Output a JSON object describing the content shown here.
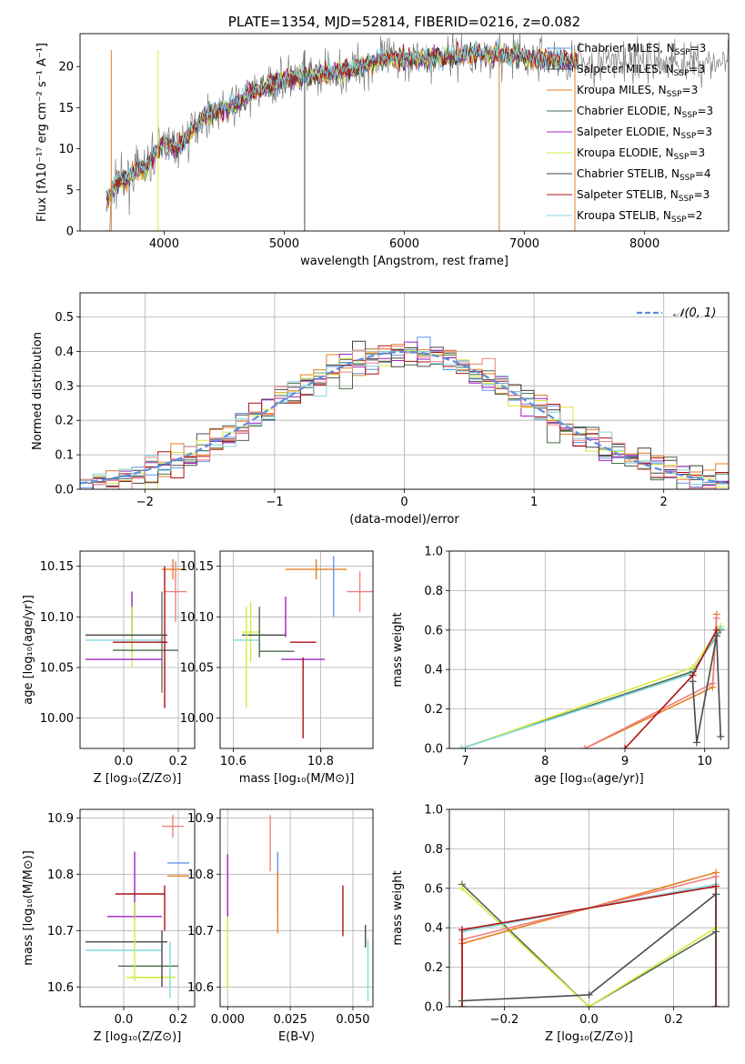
{
  "chart_data": [
    {
      "id": "spectrum",
      "type": "line",
      "title": "PLATE=1354, MJD=52814, FIBERID=0216, z=0.082",
      "xlabel": "wavelength [Angstrom, rest frame]",
      "ylabel": "Flux [fλ10⁻¹⁷ erg cm⁻² s⁻¹ A⁻¹]",
      "xlim": [
        3300,
        8700
      ],
      "ylim": [
        0,
        24
      ],
      "xticks": [
        4000,
        5000,
        6000,
        7000,
        8000
      ],
      "yticks": [
        0,
        5,
        10,
        15,
        20
      ],
      "grid": false,
      "legend_position": "right",
      "shape": {
        "x": [
          3550,
          3600,
          3700,
          3800,
          3850,
          3900,
          3950,
          4000,
          4100,
          4200,
          4300,
          4400,
          4500,
          4600,
          4700,
          4800,
          4900,
          5000,
          5200,
          5400,
          5600,
          5800,
          6000,
          6200,
          6400,
          6600,
          6800,
          7000,
          7200,
          7400
        ],
        "y": [
          4,
          6,
          6.5,
          7.5,
          7.5,
          9,
          10,
          11,
          10,
          11.5,
          13.5,
          14.5,
          14.8,
          15.5,
          16.5,
          17.2,
          17.8,
          18.5,
          18.8,
          19.2,
          19.8,
          20.8,
          21,
          21,
          21.3,
          21.5,
          21.5,
          21.2,
          21,
          20.5
        ]
      },
      "series": [
        {
          "name": "Chabrier MILES, N",
          "sub": "SSP",
          "suffix": "=3",
          "color": "#6494e8"
        },
        {
          "name": "Salpeter MILES, N",
          "sub": "SSP",
          "suffix": "=3",
          "color": "#4a4a4a"
        },
        {
          "name": "Kroupa MILES, N",
          "sub": "SSP",
          "suffix": "=3",
          "color": "#e67e22"
        },
        {
          "name": "Chabrier ELODIE, N",
          "sub": "SSP",
          "suffix": "=3",
          "color": "#4b6b4b"
        },
        {
          "name": "Salpeter ELODIE, N",
          "sub": "SSP",
          "suffix": "=3",
          "color": "#a020c0"
        },
        {
          "name": "Kroupa ELODIE, N",
          "sub": "SSP",
          "suffix": "=3",
          "color": "#d8e840"
        },
        {
          "name": "Chabrier STELIB, N",
          "sub": "SSP",
          "suffix": "=4",
          "color": "#404040"
        },
        {
          "name": "Salpeter STELIB, N",
          "sub": "SSP",
          "suffix": "=3",
          "color": "#b01010"
        },
        {
          "name": "Kroupa STELIB, N",
          "sub": "SSP",
          "suffix": "=2",
          "color": "#80d8e0"
        }
      ],
      "data_color": "#808080"
    },
    {
      "id": "residuals",
      "type": "line",
      "xlabel": "(data-model)/error",
      "ylabel": "Normed distribution",
      "xlim": [
        -2.5,
        2.5
      ],
      "ylim": [
        0,
        0.57
      ],
      "xticks": [
        -2,
        -1,
        0,
        1,
        2
      ],
      "yticks": [
        0.0,
        0.1,
        0.2,
        0.3,
        0.4,
        0.5
      ],
      "grid": true,
      "legend": {
        "label": "𝒩(0, 1)",
        "position": "top-right"
      },
      "bins": {
        "start": -2.5,
        "width": 0.1,
        "count": 50
      },
      "hist_colors": [
        "#6494e8",
        "#4a4a4a",
        "#e67e22",
        "#4b6b4b",
        "#a020c0",
        "#d8e840",
        "#404040",
        "#b01010",
        "#80d8e0",
        "#f08080"
      ],
      "gaussian_color": "#5b8ee0"
    },
    {
      "id": "age_vs_Z",
      "type": "scatter",
      "xlabel": "Z [log₁₀(Z/Z⊙)]",
      "ylabel": "age  [log₁₀(age/yr)]",
      "xlim": [
        -0.16,
        0.26
      ],
      "ylim": [
        9.97,
        10.165
      ],
      "xticks": [
        0.0,
        0.2
      ],
      "yticks": [
        10.0,
        10.05,
        10.1,
        10.15
      ],
      "grid": true,
      "points": [
        {
          "x": 0.18,
          "y": 10.147,
          "xerr": 0.04,
          "yerr": 0.01,
          "color": "#e67e22"
        },
        {
          "x": 0.19,
          "y": 10.125,
          "xerr": 0.04,
          "yerr": 0.03,
          "color": "#f08080"
        },
        {
          "x": 0.03,
          "y": 10.095,
          "xerr": 0.0,
          "yerr": 0.03,
          "color": "#a020c0"
        },
        {
          "x": 0.03,
          "y": 10.08,
          "xerr": 0.0,
          "yerr": 0.03,
          "color": "#d8e840"
        },
        {
          "x": 0.01,
          "y": 10.082,
          "xerr": 0.15,
          "yerr": 0.0,
          "color": "#4a4a4a"
        },
        {
          "x": 0.0,
          "y": 10.077,
          "xerr": 0.14,
          "yerr": 0.0,
          "color": "#80d8e0"
        },
        {
          "x": 0.14,
          "y": 10.075,
          "xerr": 0.02,
          "yerr": 0.05,
          "color": "#6b6b6b"
        },
        {
          "x": 0.06,
          "y": 10.075,
          "xerr": 0.1,
          "yerr": 0.0,
          "color": "#b01010"
        },
        {
          "x": 0.08,
          "y": 10.067,
          "xerr": 0.12,
          "yerr": 0.0,
          "color": "#4b6b4b"
        },
        {
          "x": 0.0,
          "y": 10.058,
          "xerr": 0.14,
          "yerr": 0.0,
          "color": "#a020c0"
        },
        {
          "x": 0.15,
          "y": 10.08,
          "xerr": 0.0,
          "yerr": 0.07,
          "color": "#b01010"
        }
      ]
    },
    {
      "id": "age_vs_mass",
      "type": "scatter",
      "xlabel": "mass [log₁₀(M/M⊙)]",
      "xlim": [
        10.57,
        10.92
      ],
      "ylim": [
        9.97,
        10.165
      ],
      "xticks": [
        10.6,
        10.8
      ],
      "yticks": [
        10.0,
        10.05,
        10.1,
        10.15
      ],
      "grid": true,
      "points": [
        {
          "x": 10.79,
          "y": 10.147,
          "xerr": 0.07,
          "yerr": 0.01,
          "color": "#e67e22"
        },
        {
          "x": 10.83,
          "y": 10.13,
          "xerr": 0.0,
          "yerr": 0.03,
          "color": "#6494e8"
        },
        {
          "x": 10.89,
          "y": 10.125,
          "xerr": 0.03,
          "yerr": 0.02,
          "color": "#f08080"
        },
        {
          "x": 10.72,
          "y": 10.1,
          "xerr": 0.0,
          "yerr": 0.02,
          "color": "#a020c0"
        },
        {
          "x": 10.64,
          "y": 10.085,
          "xerr": 0.02,
          "yerr": 0.03,
          "color": "#d8e840"
        },
        {
          "x": 10.67,
          "y": 10.082,
          "xerr": 0.05,
          "yerr": 0.0,
          "color": "#4a4a4a"
        },
        {
          "x": 10.63,
          "y": 10.077,
          "xerr": 0.03,
          "yerr": 0.0,
          "color": "#80d8e0"
        },
        {
          "x": 10.66,
          "y": 10.085,
          "xerr": 0.0,
          "yerr": 0.025,
          "color": "#4b6b4b"
        },
        {
          "x": 10.76,
          "y": 10.075,
          "xerr": 0.03,
          "yerr": 0.0,
          "color": "#b01010"
        },
        {
          "x": 10.7,
          "y": 10.066,
          "xerr": 0.04,
          "yerr": 0.0,
          "color": "#4b6b4b"
        },
        {
          "x": 10.76,
          "y": 10.058,
          "xerr": 0.05,
          "yerr": 0.0,
          "color": "#a020c0"
        },
        {
          "x": 10.63,
          "y": 10.06,
          "xerr": 0.0,
          "yerr": 0.05,
          "color": "#d8e840"
        },
        {
          "x": 10.76,
          "y": 10.02,
          "xerr": 0.0,
          "yerr": 0.04,
          "color": "#b01010"
        }
      ]
    },
    {
      "id": "weight_vs_age",
      "type": "line",
      "xlabel": "age  [log₁₀(age/yr)]",
      "ylabel": "mass weight",
      "xlim": [
        6.8,
        10.3
      ],
      "ylim": [
        0,
        1.0
      ],
      "xticks": [
        7,
        8,
        9,
        10
      ],
      "yticks": [
        0.0,
        0.2,
        0.4,
        0.6,
        0.8,
        1.0
      ],
      "grid": true,
      "series": [
        {
          "x": [
            6.95,
            9.85,
            10.2
          ],
          "y": [
            0.0,
            0.39,
            0.6
          ],
          "color": "#4b6b4b"
        },
        {
          "x": [
            6.95,
            9.85,
            10.2
          ],
          "y": [
            0.0,
            0.41,
            0.62
          ],
          "color": "#d8e840"
        },
        {
          "x": [
            6.95,
            9.85,
            10.2
          ],
          "y": [
            0.0,
            0.38,
            0.61
          ],
          "color": "#80d8e0"
        },
        {
          "x": [
            8.5,
            10.1,
            10.15
          ],
          "y": [
            0.0,
            0.31,
            0.68
          ],
          "color": "#e67e22"
        },
        {
          "x": [
            8.5,
            10.1,
            10.15
          ],
          "y": [
            0.0,
            0.33,
            0.66
          ],
          "color": "#f08080"
        },
        {
          "x": [
            9.0,
            9.85,
            10.15
          ],
          "y": [
            0.0,
            0.37,
            0.6
          ],
          "color": "#b01010"
        },
        {
          "x": [
            9.85,
            9.9,
            10.15,
            10.2
          ],
          "y": [
            0.34,
            0.03,
            0.57,
            0.06
          ],
          "color": "#4a4a4a"
        }
      ]
    },
    {
      "id": "mass_vs_Z",
      "type": "scatter",
      "xlabel": "Z [log₁₀(Z/Z⊙)]",
      "ylabel": "mass [log₁₀(M/M⊙)]",
      "xlim": [
        -0.16,
        0.26
      ],
      "ylim": [
        10.565,
        10.915
      ],
      "xticks": [
        0.0,
        0.2
      ],
      "yticks": [
        10.6,
        10.7,
        10.8,
        10.9
      ],
      "grid": true,
      "points": [
        {
          "x": 0.18,
          "y": 10.885,
          "xerr": 0.04,
          "yerr": 0.02,
          "color": "#f08080"
        },
        {
          "x": 0.2,
          "y": 10.82,
          "xerr": 0.04,
          "yerr": 0.0,
          "color": "#6494e8"
        },
        {
          "x": 0.2,
          "y": 10.797,
          "xerr": 0.04,
          "yerr": 0.0,
          "color": "#e67e22"
        },
        {
          "x": 0.04,
          "y": 10.78,
          "xerr": 0.0,
          "yerr": 0.06,
          "color": "#a020c0"
        },
        {
          "x": 0.06,
          "y": 10.765,
          "xerr": 0.09,
          "yerr": 0.0,
          "color": "#b01010"
        },
        {
          "x": 0.04,
          "y": 10.725,
          "xerr": 0.1,
          "yerr": 0.0,
          "color": "#a020c0"
        },
        {
          "x": 0.01,
          "y": 10.68,
          "xerr": 0.15,
          "yerr": 0.0,
          "color": "#4a4a4a"
        },
        {
          "x": 0.0,
          "y": 10.665,
          "xerr": 0.14,
          "yerr": 0.0,
          "color": "#80d8e0"
        },
        {
          "x": 0.09,
          "y": 10.637,
          "xerr": 0.11,
          "yerr": 0.0,
          "color": "#4b6b4b"
        },
        {
          "x": 0.1,
          "y": 10.617,
          "xerr": 0.09,
          "yerr": 0.0,
          "color": "#d8e840"
        },
        {
          "x": 0.04,
          "y": 10.68,
          "xerr": 0.0,
          "yerr": 0.07,
          "color": "#d8e840"
        },
        {
          "x": 0.15,
          "y": 10.74,
          "xerr": 0.0,
          "yerr": 0.04,
          "color": "#b01010"
        },
        {
          "x": 0.14,
          "y": 10.65,
          "xerr": 0.0,
          "yerr": 0.05,
          "color": "#4a4a4a"
        },
        {
          "x": 0.17,
          "y": 10.63,
          "xerr": 0.0,
          "yerr": 0.05,
          "color": "#80d8e0"
        }
      ]
    },
    {
      "id": "mass_vs_ebv",
      "type": "scatter",
      "xlabel": "E(B-V)",
      "xlim": [
        -0.003,
        0.058
      ],
      "ylim": [
        10.565,
        10.915
      ],
      "xticks": [
        0.0,
        0.025,
        0.05
      ],
      "yticks": [
        10.6,
        10.7,
        10.8,
        10.9
      ],
      "grid": true,
      "points": [
        {
          "x": 0.0,
          "y": 10.78,
          "xerr": 0.0,
          "yerr": 0.055,
          "color": "#a020c0"
        },
        {
          "x": 0.0,
          "y": 10.66,
          "xerr": 0.0,
          "yerr": 0.065,
          "color": "#d8e840"
        },
        {
          "x": 0.017,
          "y": 10.855,
          "xerr": 0.0,
          "yerr": 0.05,
          "color": "#f08080"
        },
        {
          "x": 0.02,
          "y": 10.79,
          "xerr": 0.0,
          "yerr": 0.05,
          "color": "#6494e8"
        },
        {
          "x": 0.02,
          "y": 10.75,
          "xerr": 0.0,
          "yerr": 0.055,
          "color": "#e67e22"
        },
        {
          "x": 0.046,
          "y": 10.735,
          "xerr": 0.0,
          "yerr": 0.045,
          "color": "#b01010"
        },
        {
          "x": 0.055,
          "y": 10.69,
          "xerr": 0.0,
          "yerr": 0.02,
          "color": "#4a4a4a"
        },
        {
          "x": 0.056,
          "y": 10.63,
          "xerr": 0.0,
          "yerr": 0.055,
          "color": "#80d8e0"
        }
      ]
    },
    {
      "id": "weight_vs_Z",
      "type": "line",
      "xlabel": "Z [log₁₀(Z/Z⊙)]",
      "ylabel": "mass weight",
      "xlim": [
        -0.33,
        0.33
      ],
      "ylim": [
        0,
        1.0
      ],
      "xticks": [
        -0.2,
        0.0,
        0.2
      ],
      "yticks": [
        0.0,
        0.2,
        0.4,
        0.6,
        0.8,
        1.0
      ],
      "grid": true,
      "series": [
        {
          "x": [
            -0.3,
            0.0,
            0.3,
            0.3
          ],
          "y": [
            0.62,
            0.0,
            0.38,
            0.0
          ],
          "color": "#4b6b4b"
        },
        {
          "x": [
            -0.3,
            0.0,
            0.3,
            0.3
          ],
          "y": [
            0.6,
            0.0,
            0.4,
            0.0
          ],
          "color": "#d8e840"
        },
        {
          "x": [
            -0.3,
            -0.3,
            0.3,
            0.3
          ],
          "y": [
            0.0,
            0.32,
            0.68,
            0.0
          ],
          "color": "#e67e22"
        },
        {
          "x": [
            -0.3,
            -0.3,
            0.3,
            0.3
          ],
          "y": [
            0.0,
            0.34,
            0.66,
            0.0
          ],
          "color": "#f08080"
        },
        {
          "x": [
            -0.3,
            0.3
          ],
          "y": [
            0.38,
            0.62
          ],
          "color": "#80d8e0"
        },
        {
          "x": [
            -0.3,
            -0.3,
            0.3,
            0.3
          ],
          "y": [
            0.0,
            0.39,
            0.61,
            0.0
          ],
          "color": "#b01010"
        },
        {
          "x": [
            -0.3,
            0.0,
            0.3,
            0.3
          ],
          "y": [
            0.03,
            0.06,
            0.57,
            0.0
          ],
          "color": "#4a4a4a"
        }
      ]
    }
  ]
}
